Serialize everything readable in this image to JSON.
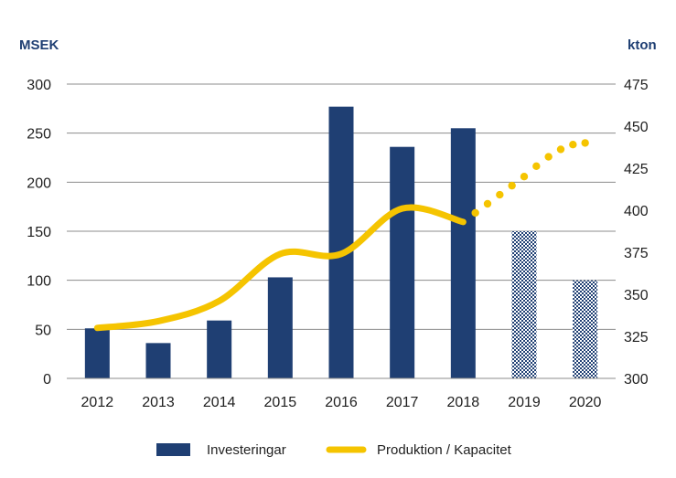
{
  "chart_data": {
    "type": "bar",
    "title": "",
    "left_axis_label": "MSEK",
    "right_axis_label": "kton",
    "categories": [
      "2012",
      "2013",
      "2014",
      "2015",
      "2016",
      "2017",
      "2018",
      "2019",
      "2020"
    ],
    "left_ylim": [
      0,
      300
    ],
    "left_ticks": [
      "0",
      "50",
      "100",
      "150",
      "200",
      "250",
      "300"
    ],
    "right_ylim": [
      300,
      475
    ],
    "right_ticks": [
      "300",
      "325",
      "350",
      "375",
      "400",
      "425",
      "450",
      "475"
    ],
    "grid": true,
    "series": [
      {
        "name": "Investeringar",
        "kind": "bar",
        "axis": "left",
        "color": "#1f3f73",
        "values": [
          51,
          36,
          59,
          103,
          277,
          236,
          255,
          150,
          100
        ],
        "forecast_from_index": 7
      },
      {
        "name": "Produktion / Kapacitet",
        "kind": "line",
        "axis": "right",
        "color": "#f5c400",
        "values": [
          330,
          334,
          346,
          374,
          374,
          401,
          393,
          420,
          440
        ],
        "forecast_from_index": 6
      }
    ],
    "legend": [
      "Investeringar",
      "Produktion / Kapacitet"
    ],
    "legend_position": "bottom"
  }
}
